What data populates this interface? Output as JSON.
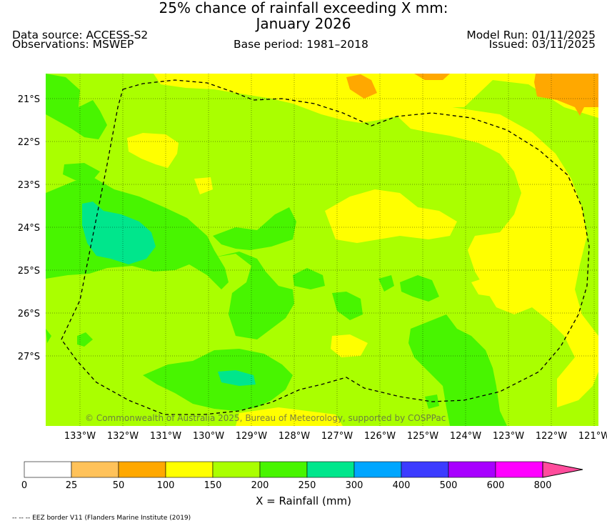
{
  "header": {
    "title_line1": "25% chance of rainfall exceeding X mm:",
    "title_line2": "January 2026",
    "data_source": "Data source: ACCESS-S2",
    "observations": "Observations: MSWEP",
    "base_period": "Base period: 1981–2018",
    "model_run": "Model Run: 01/11/2025",
    "issued": "Issued: 03/11/2025"
  },
  "map": {
    "lat_labels": [
      "21°S",
      "22°S",
      "23°S",
      "24°S",
      "25°S",
      "26°S",
      "27°S"
    ],
    "lon_labels": [
      "133°W",
      "132°W",
      "131°W",
      "130°W",
      "129°W",
      "128°W",
      "127°W",
      "126°W",
      "125°W",
      "124°W",
      "123°W",
      "122°W",
      "121°W"
    ],
    "copyright": "© Commonwealth of Australia 2025, Bureau of Meteorology, supported by COSPPac",
    "colors": {
      "c25_50": "#ffc25a",
      "c50_100": "#ffa800",
      "c100_150": "#ffff00",
      "c150_200": "#aaff00",
      "c200_250": "#48f500",
      "c250_300": "#00e68c",
      "c300_400": "#00a6ff",
      "c400_500": "#3c3cff",
      "c500_600": "#a800ff",
      "c600_800": "#ff00ff",
      "c800_plus": "#ff4c9c"
    }
  },
  "colorbar": {
    "ticks": [
      "0",
      "25",
      "50",
      "100",
      "150",
      "200",
      "250",
      "300",
      "400",
      "500",
      "600",
      "800"
    ],
    "colors": [
      "#ffffff",
      "#ffc25a",
      "#ffa800",
      "#ffff00",
      "#aaff00",
      "#48f500",
      "#00e68c",
      "#00a6ff",
      "#3c3cff",
      "#a800ff",
      "#ff00ff"
    ],
    "extend_color": "#ff4c9c",
    "label": "X = Rainfall (mm)"
  },
  "footnote": "-- -- -- EEZ border V11 (Flanders Marine Institute (2019)"
}
